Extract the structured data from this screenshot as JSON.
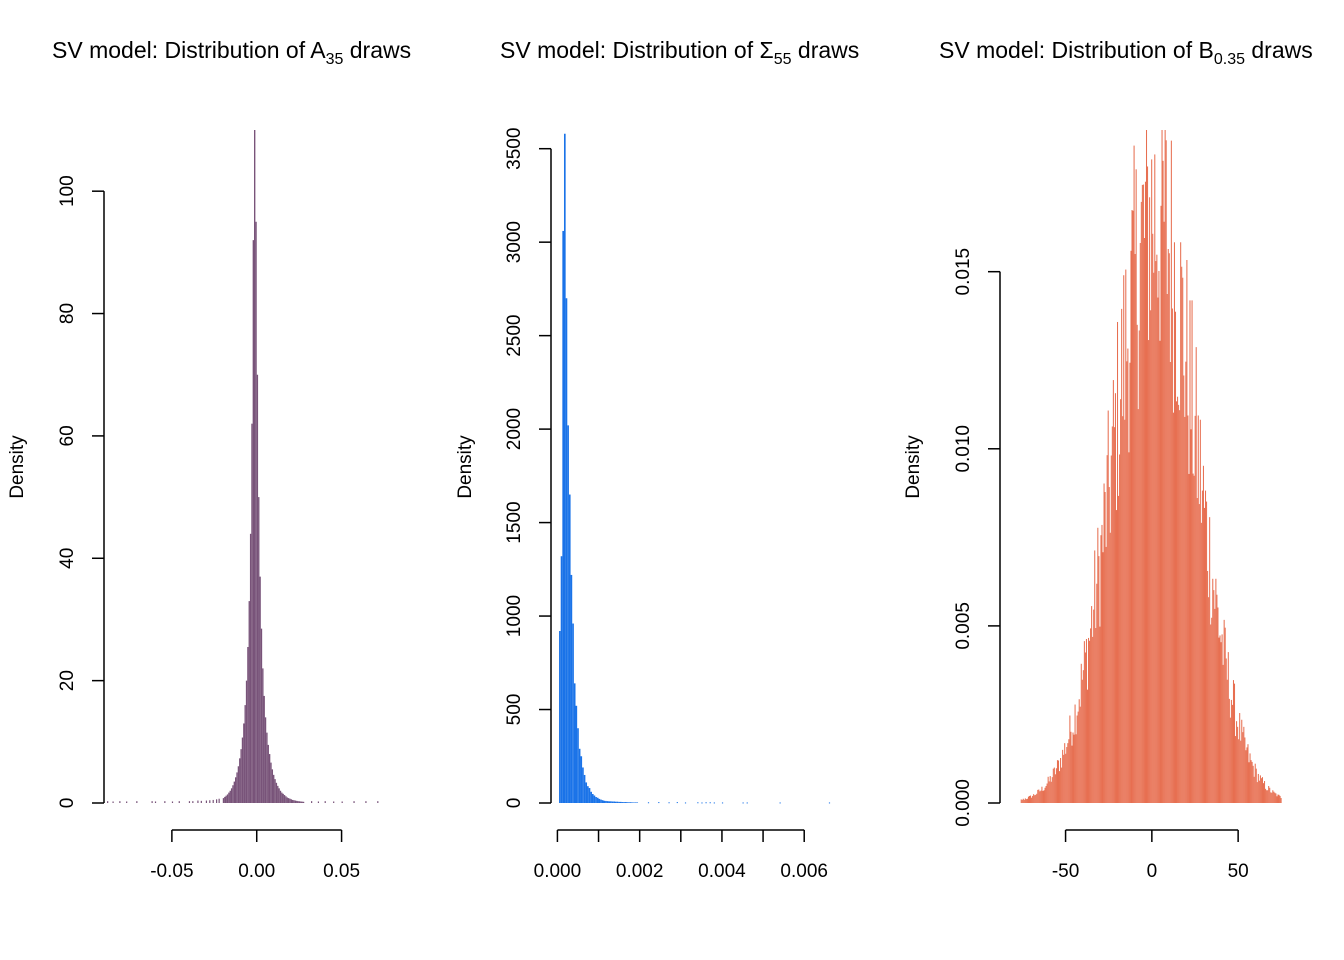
{
  "chart_data": [
    {
      "type": "bar",
      "title_main": "SV model: Distribution of A",
      "title_subscript": "35",
      "title_suffix": " draws",
      "xlabel": "",
      "ylabel": "Density",
      "color": "#785379",
      "xlim": [
        -0.09,
        0.075
      ],
      "ylim": [
        0,
        110
      ],
      "x_ticks": [
        -0.05,
        0.0,
        0.05
      ],
      "x_tick_labels": [
        "-0.05",
        "0.00",
        "0.05"
      ],
      "y_ticks": [
        0,
        20,
        40,
        60,
        80,
        100
      ],
      "y_tick_labels": [
        "0",
        "20",
        "40",
        "60",
        "80",
        "100"
      ],
      "bin_width": 0.0008,
      "bins": {
        "x_start": -0.02,
        "densities": [
          0.8,
          1.0,
          1.2,
          1.4,
          1.7,
          2.0,
          2.4,
          2.9,
          3.5,
          4.2,
          5.0,
          6.0,
          7.3,
          8.8,
          10.7,
          13.0,
          16.0,
          20.0,
          25.5,
          33.0,
          44.0,
          62.0,
          92.0,
          110.0,
          95.0,
          70.0,
          50.0,
          37.0,
          28.5,
          22.0,
          17.5,
          14.0,
          11.5,
          9.5,
          8.0,
          6.6,
          5.5,
          4.6,
          3.9,
          3.3,
          2.8,
          2.4,
          2.0,
          1.7,
          1.5,
          1.3,
          1.1,
          0.9,
          0.8,
          0.7,
          0.6,
          0.5,
          0.45,
          0.4,
          0.35,
          0.3,
          0.28,
          0.25,
          0.22,
          0.2
        ]
      },
      "tail_bins": [
        {
          "x": -0.0882,
          "d": 0.3
        },
        {
          "x": -0.085,
          "d": 0.25
        },
        {
          "x": -0.081,
          "d": 0.3
        },
        {
          "x": -0.077,
          "d": 0.25
        },
        {
          "x": -0.071,
          "d": 0.3
        },
        {
          "x": -0.062,
          "d": 0.3
        },
        {
          "x": -0.06,
          "d": 0.25
        },
        {
          "x": -0.0545,
          "d": 0.3
        },
        {
          "x": -0.05,
          "d": 0.25
        },
        {
          "x": -0.046,
          "d": 0.3
        },
        {
          "x": -0.04,
          "d": 0.3
        },
        {
          "x": -0.038,
          "d": 0.3
        },
        {
          "x": -0.035,
          "d": 0.4
        },
        {
          "x": -0.033,
          "d": 0.35
        },
        {
          "x": -0.03,
          "d": 0.4
        },
        {
          "x": -0.028,
          "d": 0.45
        },
        {
          "x": -0.026,
          "d": 0.5
        },
        {
          "x": -0.024,
          "d": 0.6
        },
        {
          "x": -0.0225,
          "d": 0.7
        },
        {
          "x": 0.032,
          "d": 0.3
        },
        {
          "x": 0.036,
          "d": 0.25
        },
        {
          "x": 0.04,
          "d": 0.3
        },
        {
          "x": 0.045,
          "d": 0.25
        },
        {
          "x": 0.05,
          "d": 0.25
        },
        {
          "x": 0.057,
          "d": 0.3
        },
        {
          "x": 0.064,
          "d": 0.3
        },
        {
          "x": 0.071,
          "d": 0.3
        }
      ]
    },
    {
      "type": "bar",
      "title_main": "SV model: Distribution of Σ",
      "title_subscript": "55",
      "title_suffix": " draws",
      "xlabel": "",
      "ylabel": "Density",
      "color": "#1a73e8",
      "xlim": [
        -1e-05,
        0.0067
      ],
      "ylim": [
        0,
        3600
      ],
      "x_ticks": [
        0.0,
        0.001,
        0.002,
        0.003,
        0.004,
        0.005,
        0.006
      ],
      "x_tick_labels": [
        "0.000",
        "",
        "0.002",
        "",
        "0.004",
        "",
        "0.006"
      ],
      "y_ticks": [
        0,
        500,
        1000,
        1500,
        2000,
        2500,
        3000,
        3500
      ],
      "y_tick_labels": [
        "0",
        "500",
        "1000",
        "1500",
        "2000",
        "2500",
        "3000",
        "3500"
      ],
      "bin_width": 4e-05,
      "bins": {
        "x_start": 4e-05,
        "densities": [
          920,
          1320,
          3060,
          3580,
          2700,
          2020,
          1650,
          1220,
          960,
          640,
          520,
          400,
          290,
          250,
          190,
          150,
          110,
          90,
          80,
          60,
          48,
          40,
          32,
          28,
          22,
          18,
          15,
          12,
          11,
          10,
          9,
          9,
          8,
          8,
          7,
          7,
          6,
          6,
          5,
          5,
          5,
          4,
          4,
          4,
          3,
          3,
          3,
          3
        ]
      },
      "tail_bins": [
        {
          "x": 0.0022,
          "d": 4
        },
        {
          "x": 0.00245,
          "d": 5
        },
        {
          "x": 0.0027,
          "d": 4
        },
        {
          "x": 0.0029,
          "d": 5
        },
        {
          "x": 0.0031,
          "d": 3
        },
        {
          "x": 0.0034,
          "d": 4
        },
        {
          "x": 0.0035,
          "d": 3
        },
        {
          "x": 0.0036,
          "d": 4
        },
        {
          "x": 0.0037,
          "d": 4
        },
        {
          "x": 0.0038,
          "d": 3
        },
        {
          "x": 0.004,
          "d": 3
        },
        {
          "x": 0.0045,
          "d": 3
        },
        {
          "x": 0.0046,
          "d": 3
        },
        {
          "x": 0.0054,
          "d": 3
        },
        {
          "x": 0.0066,
          "d": 3
        }
      ]
    },
    {
      "type": "bar",
      "title_main": "SV model: Distribution of B",
      "title_subscript": "0.35",
      "title_suffix": " draws",
      "xlabel": "",
      "ylabel": "Density",
      "color": "#e76f51",
      "xlim": [
        -88,
        76
      ],
      "ylim": [
        0,
        0.019
      ],
      "x_ticks": [
        -50,
        0,
        50
      ],
      "x_tick_labels": [
        "-50",
        "0",
        "50"
      ],
      "y_ticks": [
        0.0,
        0.005,
        0.01,
        0.015
      ],
      "y_tick_labels": [
        "0.000",
        "0.005",
        "0.010",
        "0.015"
      ],
      "bin_width": 0.6,
      "bins": {
        "x_start": -82,
        "densities": []
      },
      "tail_bins": []
    }
  ]
}
